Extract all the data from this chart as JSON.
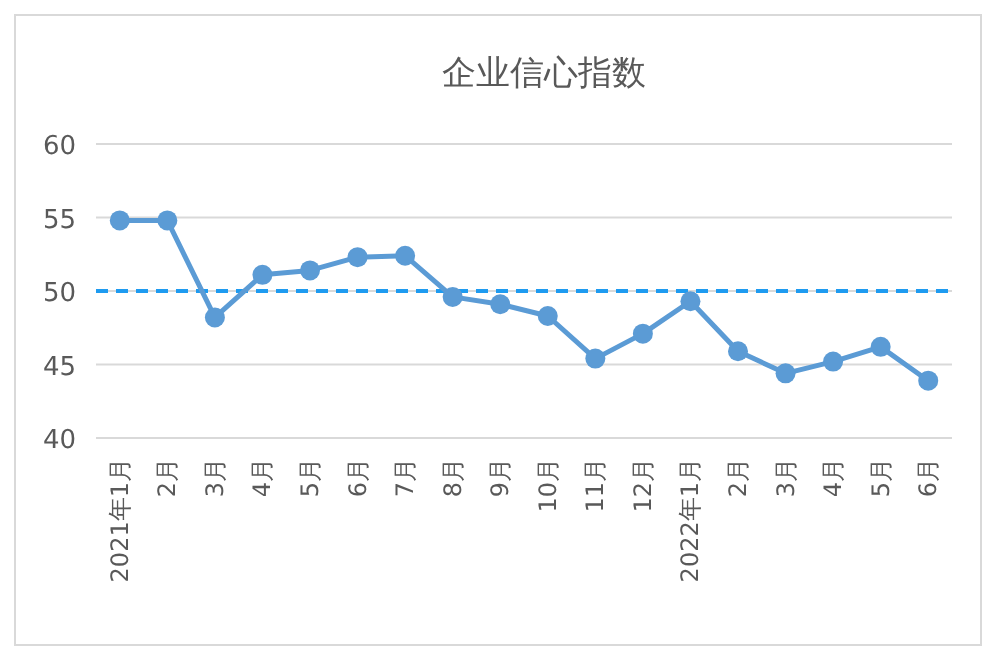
{
  "chart_data": {
    "type": "line",
    "title": "企业信心指数",
    "categories": [
      "2021年1月",
      "2月",
      "3月",
      "4月",
      "5月",
      "6月",
      "7月",
      "8月",
      "9月",
      "10月",
      "11月",
      "12月",
      "2022年1月",
      "2月",
      "3月",
      "4月",
      "5月",
      "6月"
    ],
    "series": [
      {
        "color": "#5b9bd5",
        "values": [
          54.8,
          54.8,
          48.2,
          51.1,
          51.4,
          52.3,
          52.4,
          49.6,
          49.1,
          48.3,
          45.4,
          47.1,
          49.3,
          45.9,
          44.4,
          45.2,
          46.2,
          43.9
        ]
      }
    ],
    "ylim": [
      40,
      60
    ],
    "yticks": [
      40,
      45,
      50,
      55,
      60
    ],
    "grid": "y",
    "marker": "circle",
    "line_style": "solid",
    "ref_lines": [
      {
        "axis": "y",
        "value": 50,
        "label": null,
        "color": "#1e9bf0",
        "line_style": "dashed"
      }
    ]
  }
}
